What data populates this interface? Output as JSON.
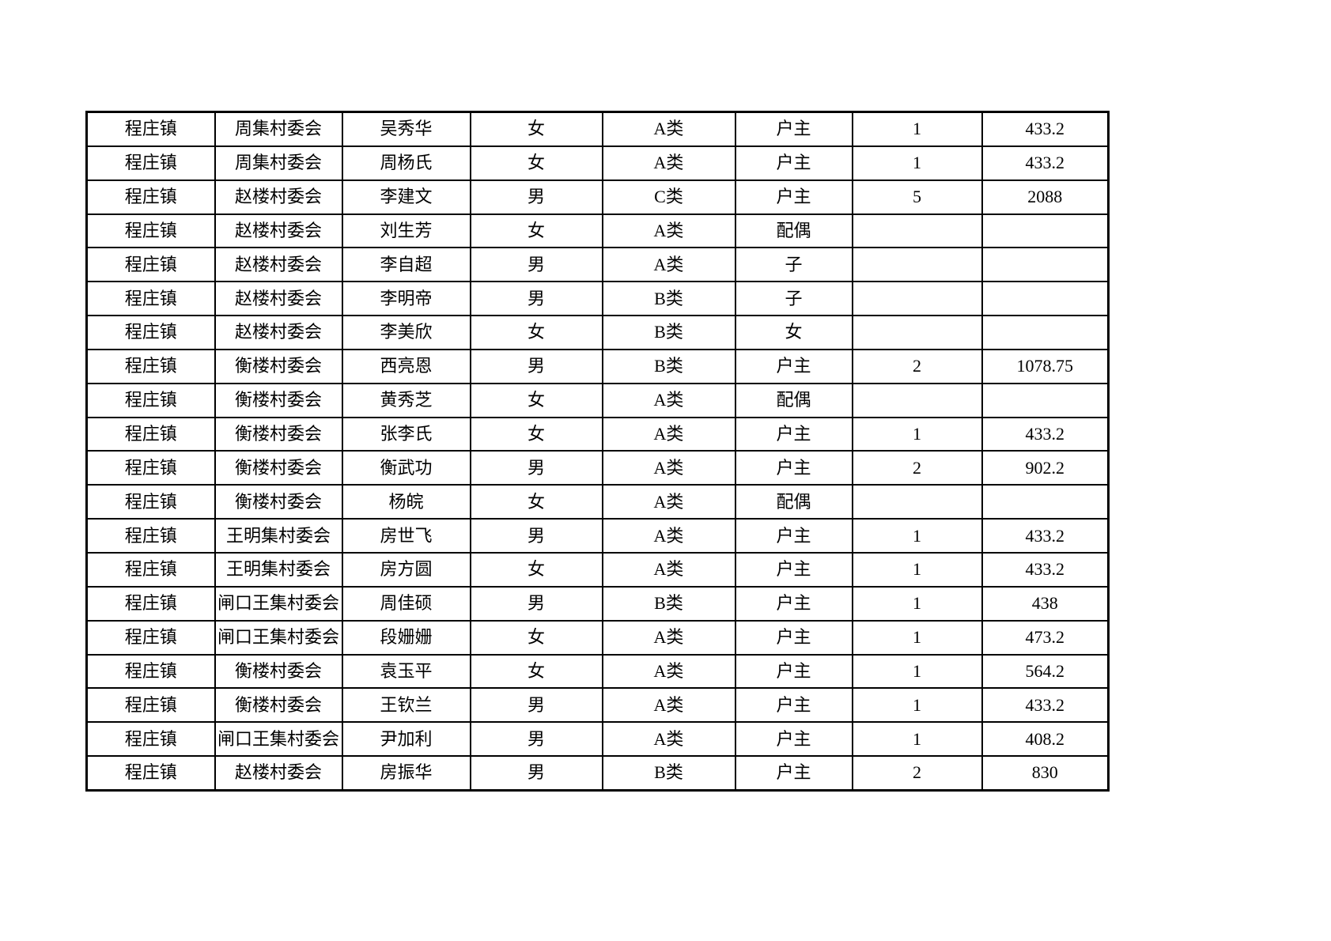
{
  "colors": {
    "page_background": "#ffffff",
    "table_border": "#000000",
    "text": "#000000"
  },
  "table": {
    "rows": [
      {
        "town": "程庄镇",
        "village": "周集村委会",
        "person": "吴秀华",
        "gender": "女",
        "category": "A类",
        "relation": "户主",
        "count": "1",
        "amount": "433.2"
      },
      {
        "town": "程庄镇",
        "village": "周集村委会",
        "person": "周杨氏",
        "gender": "女",
        "category": "A类",
        "relation": "户主",
        "count": "1",
        "amount": "433.2"
      },
      {
        "town": "程庄镇",
        "village": "赵楼村委会",
        "person": "李建文",
        "gender": "男",
        "category": "C类",
        "relation": "户主",
        "count": "5",
        "amount": "2088"
      },
      {
        "town": "程庄镇",
        "village": "赵楼村委会",
        "person": "刘生芳",
        "gender": "女",
        "category": "A类",
        "relation": "配偶",
        "count": "",
        "amount": ""
      },
      {
        "town": "程庄镇",
        "village": "赵楼村委会",
        "person": "李自超",
        "gender": "男",
        "category": "A类",
        "relation": "子",
        "count": "",
        "amount": ""
      },
      {
        "town": "程庄镇",
        "village": "赵楼村委会",
        "person": "李明帝",
        "gender": "男",
        "category": "B类",
        "relation": "子",
        "count": "",
        "amount": ""
      },
      {
        "town": "程庄镇",
        "village": "赵楼村委会",
        "person": "李美欣",
        "gender": "女",
        "category": "B类",
        "relation": "女",
        "count": "",
        "amount": ""
      },
      {
        "town": "程庄镇",
        "village": "衡楼村委会",
        "person": "西亮恩",
        "gender": "男",
        "category": "B类",
        "relation": "户主",
        "count": "2",
        "amount": "1078.75"
      },
      {
        "town": "程庄镇",
        "village": "衡楼村委会",
        "person": "黄秀芝",
        "gender": "女",
        "category": "A类",
        "relation": "配偶",
        "count": "",
        "amount": ""
      },
      {
        "town": "程庄镇",
        "village": "衡楼村委会",
        "person": "张李氏",
        "gender": "女",
        "category": "A类",
        "relation": "户主",
        "count": "1",
        "amount": "433.2"
      },
      {
        "town": "程庄镇",
        "village": "衡楼村委会",
        "person": "衡武功",
        "gender": "男",
        "category": "A类",
        "relation": "户主",
        "count": "2",
        "amount": "902.2"
      },
      {
        "town": "程庄镇",
        "village": "衡楼村委会",
        "person": "杨皖",
        "gender": "女",
        "category": "A类",
        "relation": "配偶",
        "count": "",
        "amount": ""
      },
      {
        "town": "程庄镇",
        "village": "王明集村委会",
        "person": "房世飞",
        "gender": "男",
        "category": "A类",
        "relation": "户主",
        "count": "1",
        "amount": "433.2"
      },
      {
        "town": "程庄镇",
        "village": "王明集村委会",
        "person": "房方圆",
        "gender": "女",
        "category": "A类",
        "relation": "户主",
        "count": "1",
        "amount": "433.2"
      },
      {
        "town": "程庄镇",
        "village": "闸口王集村委会",
        "person": "周佳硕",
        "gender": "男",
        "category": "B类",
        "relation": "户主",
        "count": "1",
        "amount": "438"
      },
      {
        "town": "程庄镇",
        "village": "闸口王集村委会",
        "person": "段姗姗",
        "gender": "女",
        "category": "A类",
        "relation": "户主",
        "count": "1",
        "amount": "473.2"
      },
      {
        "town": "程庄镇",
        "village": "衡楼村委会",
        "person": "袁玉平",
        "gender": "女",
        "category": "A类",
        "relation": "户主",
        "count": "1",
        "amount": "564.2"
      },
      {
        "town": "程庄镇",
        "village": "衡楼村委会",
        "person": "王钦兰",
        "gender": "男",
        "category": "A类",
        "relation": "户主",
        "count": "1",
        "amount": "433.2"
      },
      {
        "town": "程庄镇",
        "village": "闸口王集村委会",
        "person": "尹加利",
        "gender": "男",
        "category": "A类",
        "relation": "户主",
        "count": "1",
        "amount": "408.2"
      },
      {
        "town": "程庄镇",
        "village": "赵楼村委会",
        "person": "房振华",
        "gender": "男",
        "category": "B类",
        "relation": "户主",
        "count": "2",
        "amount": "830"
      }
    ]
  }
}
